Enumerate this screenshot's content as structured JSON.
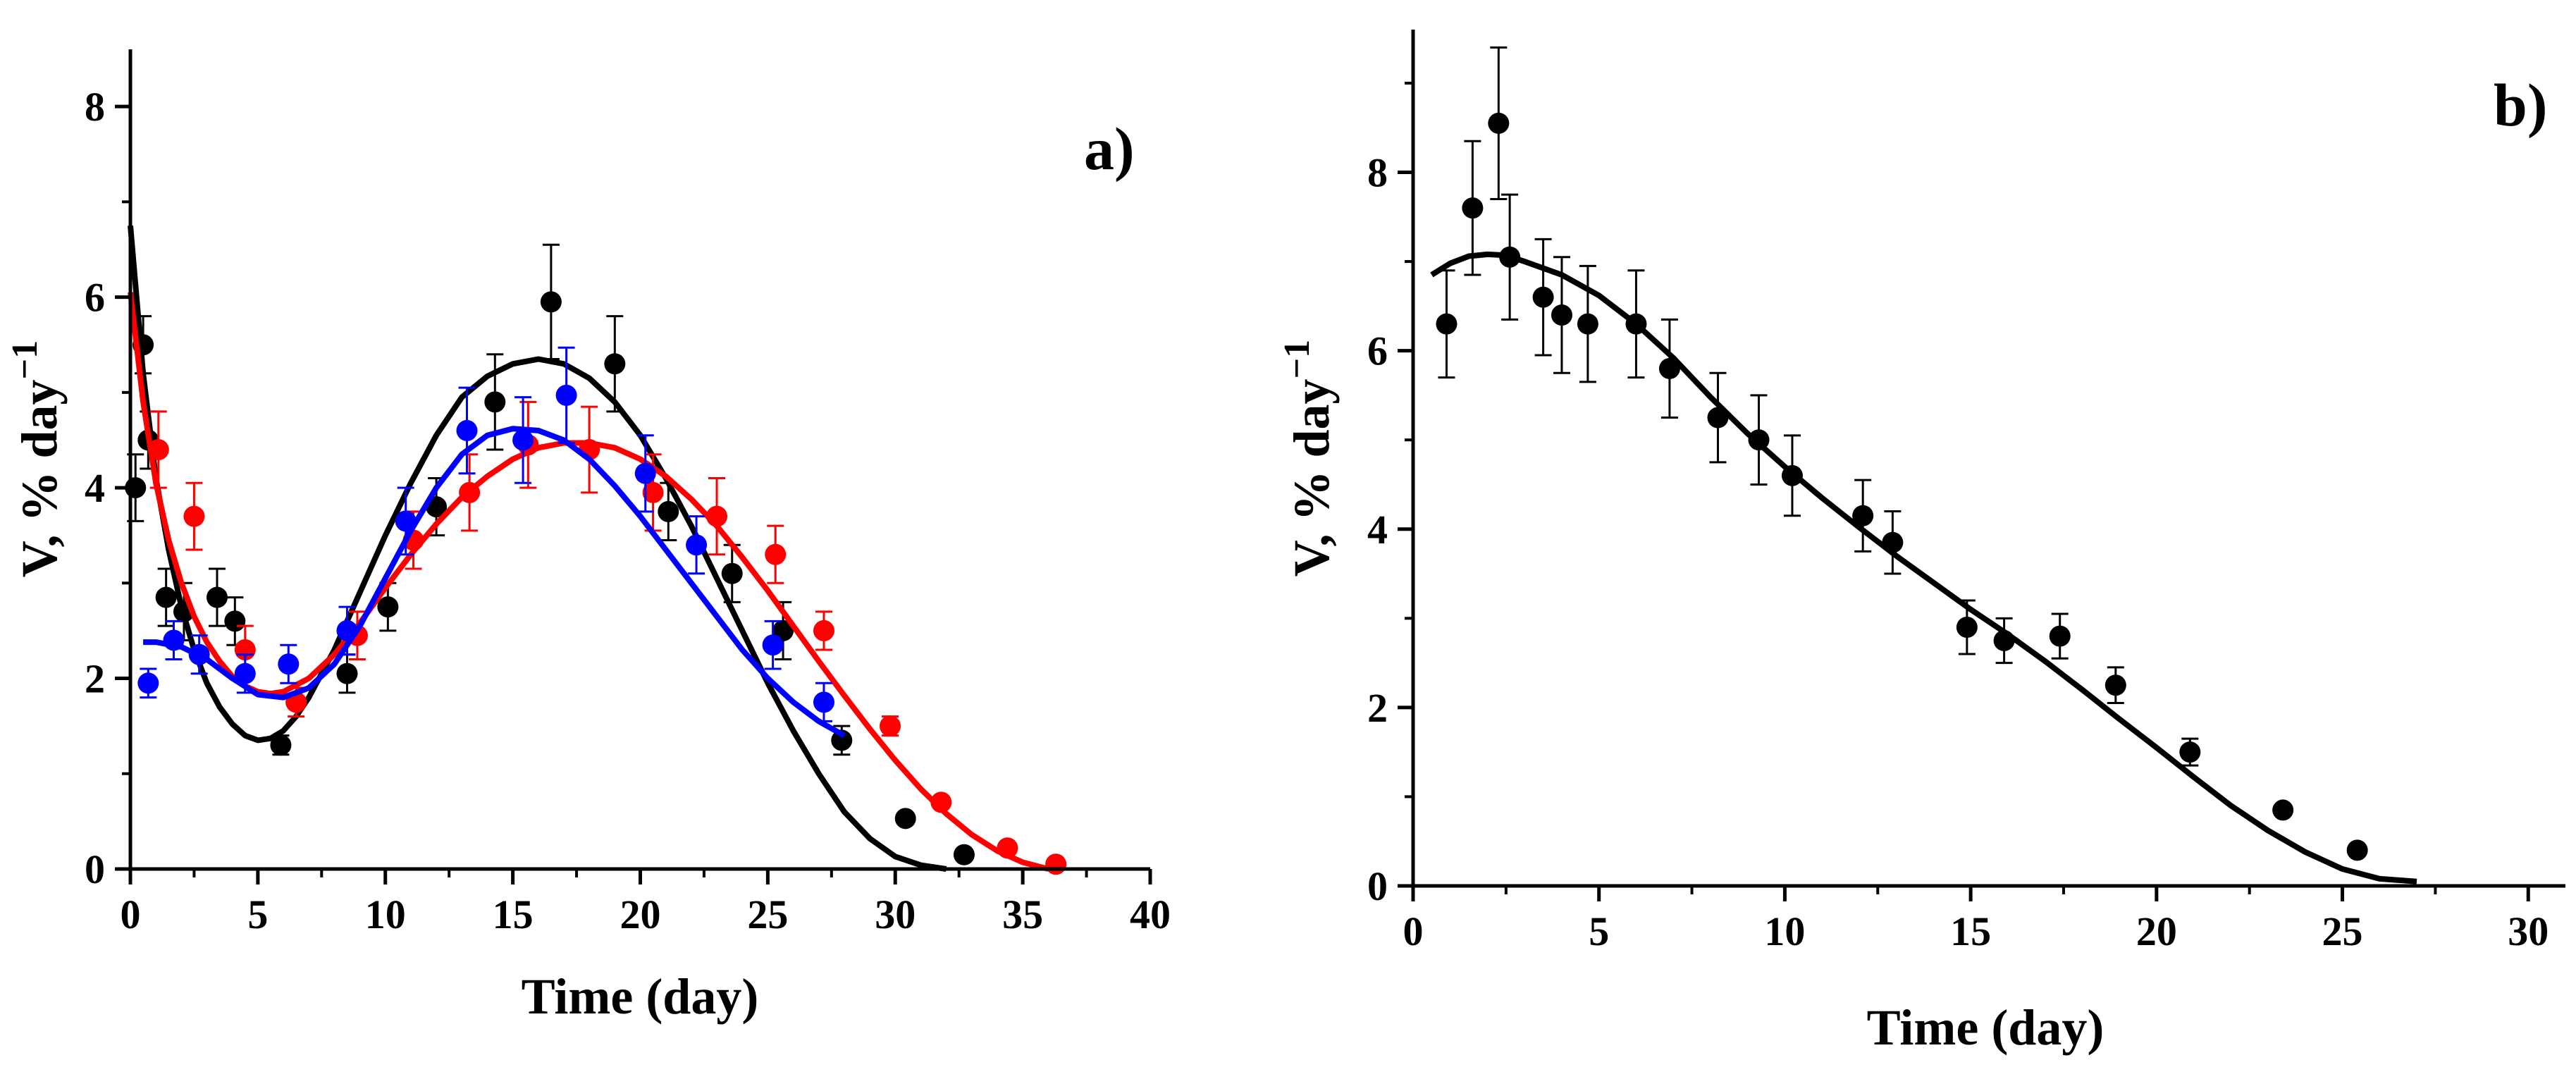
{
  "chart_data": [
    {
      "type": "scatter",
      "panel_label": "a)",
      "xlabel": "Time (day)",
      "ylabel_main": "V, % day",
      "ylabel_sup": "−1",
      "xlim": [
        0,
        40
      ],
      "ylim": [
        0,
        8.6
      ],
      "xticks": [
        0,
        5,
        10,
        15,
        20,
        25,
        30,
        35,
        40
      ],
      "yticks": [
        0,
        2,
        4,
        6,
        8
      ],
      "xtick_labels": [
        "0",
        "5",
        "10",
        "15",
        "20",
        "25",
        "30",
        "35",
        "40"
      ],
      "ytick_labels": [
        "0",
        "2",
        "4",
        "6",
        "8"
      ],
      "grid": false,
      "series": [
        {
          "name": "black",
          "color": "#000000",
          "points": [
            {
              "x": 0.2,
              "y": 4.0,
              "err": 0.35
            },
            {
              "x": 0.5,
              "y": 5.5,
              "err": 0.3
            },
            {
              "x": 0.7,
              "y": 4.5,
              "err": 0.3
            },
            {
              "x": 1.4,
              "y": 2.85,
              "err": 0.3
            },
            {
              "x": 2.1,
              "y": 2.7,
              "err": 0.3
            },
            {
              "x": 3.4,
              "y": 2.85,
              "err": 0.3
            },
            {
              "x": 4.1,
              "y": 2.6,
              "err": 0.25
            },
            {
              "x": 5.9,
              "y": 1.3,
              "err": 0.1
            },
            {
              "x": 8.5,
              "y": 2.05,
              "err": 0.2
            },
            {
              "x": 10.1,
              "y": 2.75,
              "err": 0.25
            },
            {
              "x": 12.0,
              "y": 3.8,
              "err": 0.3
            },
            {
              "x": 14.3,
              "y": 4.9,
              "err": 0.5
            },
            {
              "x": 16.5,
              "y": 5.95,
              "err": 0.6
            },
            {
              "x": 19.0,
              "y": 5.3,
              "err": 0.5
            },
            {
              "x": 21.1,
              "y": 3.75,
              "err": 0.3
            },
            {
              "x": 23.6,
              "y": 3.1,
              "err": 0.3
            },
            {
              "x": 25.6,
              "y": 2.5,
              "err": 0.3
            },
            {
              "x": 27.9,
              "y": 1.35,
              "err": 0.15
            },
            {
              "x": 30.4,
              "y": 0.53,
              "err": 0
            },
            {
              "x": 32.7,
              "y": 0.15,
              "err": 0
            }
          ],
          "fit_x": [
            0,
            0.5,
            1,
            1.5,
            2,
            2.5,
            3,
            3.5,
            4,
            4.5,
            5,
            5.5,
            6,
            6.5,
            7,
            8,
            9,
            10,
            11,
            12,
            13,
            14,
            15,
            16,
            17,
            18,
            19,
            20,
            21,
            22,
            23,
            24,
            25,
            26,
            27,
            28,
            29,
            30,
            31,
            32
          ],
          "fit_y": [
            6.75,
            5.2,
            4.1,
            3.35,
            2.75,
            2.3,
            1.95,
            1.7,
            1.52,
            1.4,
            1.35,
            1.37,
            1.45,
            1.6,
            1.8,
            2.3,
            2.9,
            3.5,
            4.05,
            4.55,
            4.95,
            5.17,
            5.3,
            5.35,
            5.3,
            5.15,
            4.9,
            4.55,
            4.1,
            3.6,
            3.05,
            2.5,
            1.95,
            1.45,
            1.0,
            0.6,
            0.32,
            0.13,
            0.04,
            0.0
          ]
        },
        {
          "name": "red",
          "color": "#ff0000",
          "points": [
            {
              "x": 1.1,
              "y": 4.4,
              "err": 0.4
            },
            {
              "x": 2.5,
              "y": 3.7,
              "err": 0.35
            },
            {
              "x": 4.5,
              "y": 2.3,
              "err": 0.25
            },
            {
              "x": 6.5,
              "y": 1.75,
              "err": 0.15
            },
            {
              "x": 8.9,
              "y": 2.45,
              "err": 0.25
            },
            {
              "x": 11.1,
              "y": 3.45,
              "err": 0.3
            },
            {
              "x": 13.3,
              "y": 3.95,
              "err": 0.4
            },
            {
              "x": 15.6,
              "y": 4.45,
              "err": 0.45
            },
            {
              "x": 18.0,
              "y": 4.4,
              "err": 0.45
            },
            {
              "x": 20.5,
              "y": 3.95,
              "err": 0.4
            },
            {
              "x": 23.0,
              "y": 3.7,
              "err": 0.4
            },
            {
              "x": 25.3,
              "y": 3.3,
              "err": 0.3
            },
            {
              "x": 27.2,
              "y": 2.5,
              "err": 0.2
            },
            {
              "x": 29.8,
              "y": 1.5,
              "err": 0.1
            },
            {
              "x": 31.8,
              "y": 0.7,
              "err": 0
            },
            {
              "x": 34.4,
              "y": 0.22,
              "err": 0
            },
            {
              "x": 36.3,
              "y": 0.05,
              "err": 0
            }
          ],
          "fit_x": [
            0,
            0.5,
            1,
            1.5,
            2,
            2.5,
            3,
            3.5,
            4,
            4.5,
            5,
            5.5,
            6,
            7,
            8,
            9,
            10,
            11,
            12,
            13,
            14,
            15,
            16,
            17,
            18,
            19,
            20,
            21,
            22,
            23,
            24,
            25,
            26,
            27,
            28,
            29,
            30,
            31,
            32,
            33,
            34,
            35,
            36
          ],
          "fit_y": [
            6.05,
            4.9,
            4.05,
            3.45,
            3.0,
            2.65,
            2.38,
            2.18,
            2.02,
            1.92,
            1.86,
            1.84,
            1.86,
            2.0,
            2.25,
            2.58,
            2.95,
            3.3,
            3.62,
            3.9,
            4.12,
            4.3,
            4.42,
            4.47,
            4.47,
            4.42,
            4.3,
            4.12,
            3.88,
            3.6,
            3.27,
            2.92,
            2.55,
            2.18,
            1.82,
            1.47,
            1.14,
            0.84,
            0.58,
            0.36,
            0.19,
            0.07,
            0.0
          ]
        },
        {
          "name": "blue",
          "color": "#0000ff",
          "points": [
            {
              "x": 0.7,
              "y": 1.95,
              "err": 0.15
            },
            {
              "x": 1.7,
              "y": 2.4,
              "err": 0.2
            },
            {
              "x": 2.7,
              "y": 2.25,
              "err": 0.2
            },
            {
              "x": 4.5,
              "y": 2.05,
              "err": 0.2
            },
            {
              "x": 6.2,
              "y": 2.15,
              "err": 0.2
            },
            {
              "x": 8.5,
              "y": 2.5,
              "err": 0.25
            },
            {
              "x": 10.8,
              "y": 3.65,
              "err": 0.35
            },
            {
              "x": 13.2,
              "y": 4.6,
              "err": 0.45
            },
            {
              "x": 15.4,
              "y": 4.5,
              "err": 0.45
            },
            {
              "x": 17.1,
              "y": 4.97,
              "err": 0.5
            },
            {
              "x": 20.2,
              "y": 4.15,
              "err": 0.4
            },
            {
              "x": 22.2,
              "y": 3.4,
              "err": 0.3
            },
            {
              "x": 25.2,
              "y": 2.35,
              "err": 0.25
            },
            {
              "x": 27.2,
              "y": 1.75,
              "err": 0.2
            }
          ],
          "fit_x": [
            0.5,
            1,
            2,
            3,
            4,
            5,
            6,
            7,
            8,
            9,
            10,
            11,
            12,
            13,
            14,
            15,
            16,
            17,
            18,
            19,
            20,
            21,
            22,
            23,
            24,
            25,
            26,
            27,
            28
          ],
          "fit_y": [
            2.38,
            2.38,
            2.33,
            2.2,
            2.0,
            1.83,
            1.8,
            1.9,
            2.15,
            2.55,
            3.05,
            3.55,
            4.0,
            4.35,
            4.55,
            4.62,
            4.6,
            4.5,
            4.3,
            4.02,
            3.7,
            3.35,
            3.0,
            2.65,
            2.3,
            2.0,
            1.75,
            1.55,
            1.4
          ]
        }
      ]
    },
    {
      "type": "scatter",
      "panel_label": "b)",
      "xlabel": "Time (day)",
      "ylabel_main": "V, % day",
      "ylabel_sup": "−1",
      "xlim": [
        0,
        31
      ],
      "ylim": [
        0,
        9.6
      ],
      "xticks": [
        0,
        5,
        10,
        15,
        20,
        25,
        30
      ],
      "yticks": [
        0,
        2,
        4,
        6,
        8
      ],
      "xtick_labels": [
        "0",
        "5",
        "10",
        "15",
        "20",
        "25",
        "30"
      ],
      "ytick_labels": [
        "0",
        "2",
        "4",
        "6",
        "8"
      ],
      "grid": false,
      "series": [
        {
          "name": "black",
          "color": "#000000",
          "points": [
            {
              "x": 0.9,
              "y": 6.3,
              "err": 0.6
            },
            {
              "x": 1.6,
              "y": 7.6,
              "err": 0.75
            },
            {
              "x": 2.3,
              "y": 8.55,
              "err": 0.85
            },
            {
              "x": 2.6,
              "y": 7.05,
              "err": 0.7
            },
            {
              "x": 3.5,
              "y": 6.6,
              "err": 0.65
            },
            {
              "x": 4.0,
              "y": 6.4,
              "err": 0.65
            },
            {
              "x": 4.7,
              "y": 6.3,
              "err": 0.65
            },
            {
              "x": 6.0,
              "y": 6.3,
              "err": 0.6
            },
            {
              "x": 6.9,
              "y": 5.8,
              "err": 0.55
            },
            {
              "x": 8.2,
              "y": 5.25,
              "err": 0.5
            },
            {
              "x": 9.3,
              "y": 5.0,
              "err": 0.5
            },
            {
              "x": 10.2,
              "y": 4.6,
              "err": 0.45
            },
            {
              "x": 12.1,
              "y": 4.15,
              "err": 0.4
            },
            {
              "x": 12.9,
              "y": 3.85,
              "err": 0.35
            },
            {
              "x": 14.9,
              "y": 2.9,
              "err": 0.3
            },
            {
              "x": 15.9,
              "y": 2.75,
              "err": 0.25
            },
            {
              "x": 17.4,
              "y": 2.8,
              "err": 0.25
            },
            {
              "x": 18.9,
              "y": 2.25,
              "err": 0.2
            },
            {
              "x": 20.9,
              "y": 1.5,
              "err": 0.15
            },
            {
              "x": 23.4,
              "y": 0.85,
              "err": 0
            },
            {
              "x": 25.4,
              "y": 0.4,
              "err": 0
            }
          ],
          "fit_x": [
            0.5,
            1,
            1.5,
            2,
            2.5,
            3,
            4,
            5,
            6,
            7,
            8,
            9,
            10,
            11,
            12,
            13,
            14,
            15,
            16,
            17,
            18,
            19,
            20,
            21,
            22,
            23,
            24,
            25,
            26,
            27
          ],
          "fit_y": [
            6.85,
            6.98,
            7.06,
            7.08,
            7.07,
            7.0,
            6.85,
            6.62,
            6.3,
            5.92,
            5.48,
            5.07,
            4.7,
            4.35,
            4.02,
            3.7,
            3.4,
            3.1,
            2.82,
            2.52,
            2.2,
            1.87,
            1.55,
            1.22,
            0.9,
            0.62,
            0.38,
            0.19,
            0.08,
            0.05
          ]
        }
      ]
    }
  ]
}
